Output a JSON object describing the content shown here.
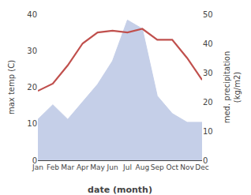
{
  "chart_data": {
    "type": "line",
    "categories": [
      "Jan",
      "Feb",
      "Mar",
      "Apr",
      "May",
      "Jun",
      "Jul",
      "Aug",
      "Sep",
      "Oct",
      "Nov",
      "Dec"
    ],
    "xlabel": "date (month)",
    "ylabel": "max temp (C)",
    "y2label": "med. precipitation\n(kg/m2)",
    "series": [
      {
        "type": "area",
        "axis": "y2",
        "color": "#c5cfe8",
        "values": [
          14,
          19,
          14,
          20,
          26,
          34,
          48,
          45,
          22,
          16,
          13,
          13
        ]
      },
      {
        "type": "line",
        "color": "#c0504d",
        "values": [
          19,
          21,
          26,
          32,
          35,
          35.5,
          35,
          36,
          33,
          33,
          28,
          22
        ]
      }
    ],
    "ylim": [
      0,
      40
    ],
    "yticks": [
      0,
      10,
      20,
      30,
      40
    ],
    "y2lim": [
      0,
      50
    ],
    "y2ticks": [
      0,
      10,
      20,
      30,
      40,
      50
    ],
    "grid": false
  }
}
